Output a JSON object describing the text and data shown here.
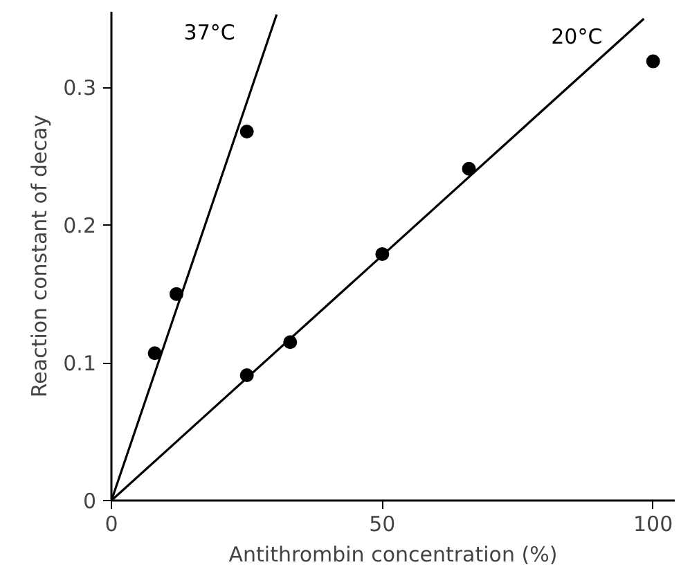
{
  "chart_data": {
    "type": "scatter",
    "xlabel": "Antithrombin concentration (%)",
    "ylabel": "Reaction constant of decay",
    "xlim": [
      0,
      104
    ],
    "ylim": [
      0,
      0.355
    ],
    "xticks": [
      0,
      50,
      100
    ],
    "yticks": [
      0,
      0.1,
      0.2,
      0.3
    ],
    "grid": false,
    "series": [
      {
        "color": "#000000",
        "marker": "circle",
        "x": [
          8,
          12,
          25
        ],
        "values": [
          0.107,
          0.15,
          0.268
        ]
      },
      {
        "color": "#000000",
        "marker": "circle",
        "x": [
          25,
          33,
          50,
          66,
          100
        ],
        "values": [
          0.091,
          0.115,
          0.179,
          0.241,
          0.319
        ]
      },
      {
        "type": "line",
        "name": "37°C",
        "color": "#000000",
        "marker": "none",
        "line_style": "solid",
        "x": [
          0,
          30.5
        ],
        "values": [
          0,
          0.353
        ]
      },
      {
        "type": "line",
        "name": "20°C",
        "color": "#000000",
        "marker": "none",
        "line_style": "solid",
        "x": [
          0,
          98.3
        ],
        "values": [
          0,
          0.35
        ]
      }
    ]
  }
}
